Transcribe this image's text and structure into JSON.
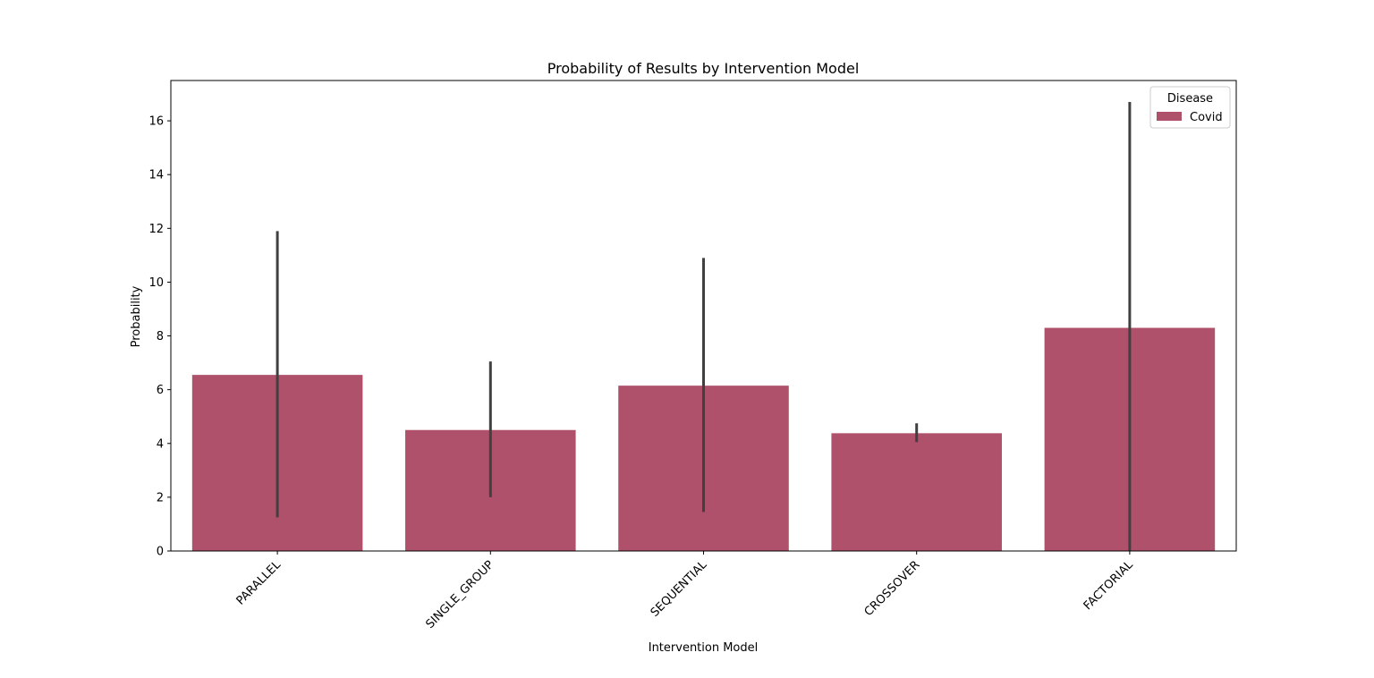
{
  "chart_data": {
    "type": "bar",
    "title": "Probability of Results by Intervention Model",
    "xlabel": "Intervention Model",
    "ylabel": "Probability",
    "categories": [
      "PARALLEL",
      "SINGLE_GROUP",
      "SEQUENTIAL",
      "CROSSOVER",
      "FACTORIAL"
    ],
    "series": [
      {
        "name": "Covid",
        "values": [
          6.55,
          4.5,
          6.15,
          4.38,
          8.3
        ],
        "error_low": [
          1.25,
          2.0,
          1.45,
          4.05,
          0.0
        ],
        "error_high": [
          11.9,
          7.05,
          10.9,
          4.75,
          16.7
        ]
      }
    ],
    "ylim": [
      0,
      17.5
    ],
    "yticks": [
      0,
      2,
      4,
      6,
      8,
      10,
      12,
      14,
      16
    ],
    "legend": {
      "title": "Disease",
      "placement": "top-right"
    },
    "grid": false,
    "colors": {
      "bar": "#b0516c",
      "errorbar": "#404040",
      "axis": "#000000"
    }
  }
}
